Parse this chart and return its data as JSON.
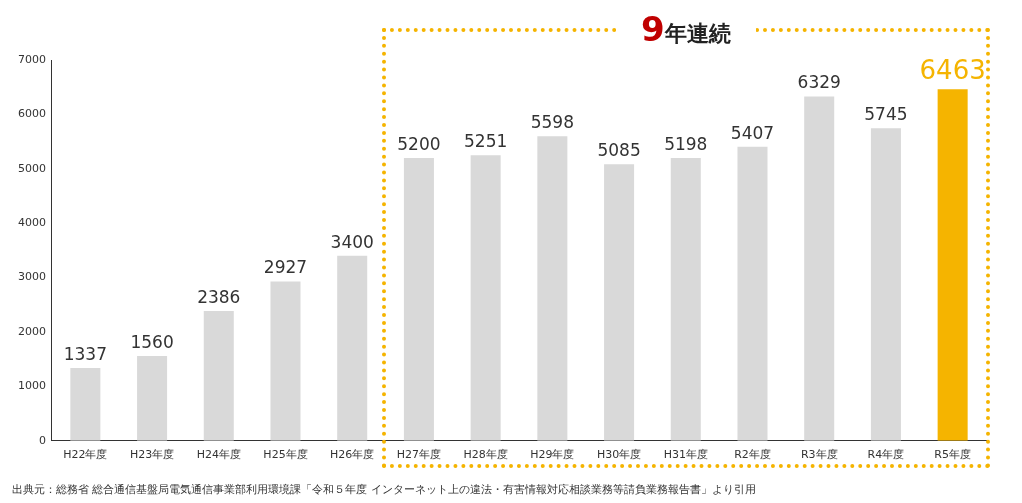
{
  "chart_data": {
    "type": "bar",
    "categories": [
      "H22年度",
      "H23年度",
      "H24年度",
      "H25年度",
      "H26年度",
      "H27年度",
      "H28年度",
      "H29年度",
      "H30年度",
      "H31年度",
      "R2年度",
      "R3年度",
      "R4年度",
      "R5年度"
    ],
    "values": [
      1337,
      1560,
      2386,
      2927,
      3400,
      5200,
      5251,
      5598,
      5085,
      5198,
      5407,
      6329,
      5745,
      6463
    ],
    "colors": [
      "#d9d9d9",
      "#d9d9d9",
      "#d9d9d9",
      "#d9d9d9",
      "#d9d9d9",
      "#d9d9d9",
      "#d9d9d9",
      "#d9d9d9",
      "#d9d9d9",
      "#d9d9d9",
      "#d9d9d9",
      "#d9d9d9",
      "#d9d9d9",
      "#f5b400"
    ],
    "ylim": [
      0,
      7000
    ],
    "yticks": [
      0,
      1000,
      2000,
      3000,
      4000,
      5000,
      6000,
      7000
    ],
    "grid": false,
    "legend": false,
    "data_labels": true,
    "annotations": [
      "9年連続",
      "出典元：総務省 総合通信基盤局電気通信事業部利用環境課「令和５年度 インターネット上の違法・有害情報対応相談業務等請負業務報告書」より引用"
    ]
  }
}
